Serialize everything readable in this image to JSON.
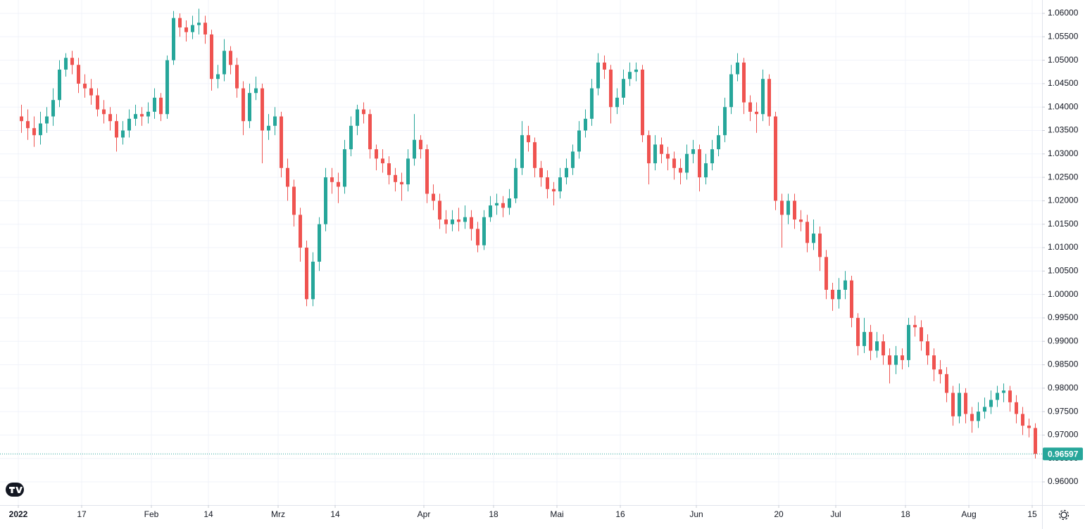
{
  "chart_data": {
    "type": "candlestick",
    "x": [
      "2022-01-03",
      "2022-01-04",
      "2022-01-05",
      "2022-01-06",
      "2022-01-07",
      "2022-01-10",
      "2022-01-11",
      "2022-01-12",
      "2022-01-13",
      "2022-01-14",
      "2022-01-17",
      "2022-01-18",
      "2022-01-19",
      "2022-01-20",
      "2022-01-21",
      "2022-01-24",
      "2022-01-25",
      "2022-01-26",
      "2022-01-27",
      "2022-01-28",
      "2022-01-31",
      "2022-02-01",
      "2022-02-02",
      "2022-02-03",
      "2022-02-04",
      "2022-02-07",
      "2022-02-08",
      "2022-02-09",
      "2022-02-10",
      "2022-02-11",
      "2022-02-14",
      "2022-02-15",
      "2022-02-16",
      "2022-02-17",
      "2022-02-18",
      "2022-02-21",
      "2022-02-22",
      "2022-02-23",
      "2022-02-24",
      "2022-02-25",
      "2022-02-28",
      "2022-03-01",
      "2022-03-02",
      "2022-03-03",
      "2022-03-04",
      "2022-03-07",
      "2022-03-08",
      "2022-03-09",
      "2022-03-10",
      "2022-03-11",
      "2022-03-14",
      "2022-03-15",
      "2022-03-16",
      "2022-03-17",
      "2022-03-18",
      "2022-03-21",
      "2022-03-22",
      "2022-03-23",
      "2022-03-24",
      "2022-03-25",
      "2022-03-28",
      "2022-03-29",
      "2022-03-30",
      "2022-03-31",
      "2022-04-01",
      "2022-04-04",
      "2022-04-05",
      "2022-04-06",
      "2022-04-07",
      "2022-04-08",
      "2022-04-11",
      "2022-04-12",
      "2022-04-13",
      "2022-04-14",
      "2022-04-15",
      "2022-04-18",
      "2022-04-19",
      "2022-04-20",
      "2022-04-21",
      "2022-04-22",
      "2022-04-25",
      "2022-04-26",
      "2022-04-27",
      "2022-04-28",
      "2022-04-29",
      "2022-05-02",
      "2022-05-03",
      "2022-05-04",
      "2022-05-05",
      "2022-05-06",
      "2022-05-09",
      "2022-05-10",
      "2022-05-11",
      "2022-05-12",
      "2022-05-13",
      "2022-05-16",
      "2022-05-17",
      "2022-05-18",
      "2022-05-19",
      "2022-05-20",
      "2022-05-23",
      "2022-05-24",
      "2022-05-25",
      "2022-05-26",
      "2022-05-27",
      "2022-05-30",
      "2022-05-31",
      "2022-06-01",
      "2022-06-02",
      "2022-06-03",
      "2022-06-06",
      "2022-06-07",
      "2022-06-08",
      "2022-06-09",
      "2022-06-10",
      "2022-06-13",
      "2022-06-14",
      "2022-06-15",
      "2022-06-16",
      "2022-06-17",
      "2022-06-20",
      "2022-06-21",
      "2022-06-22",
      "2022-06-23",
      "2022-06-24",
      "2022-06-27",
      "2022-06-28",
      "2022-06-29",
      "2022-06-30",
      "2022-07-01",
      "2022-07-04",
      "2022-07-05",
      "2022-07-06",
      "2022-07-07",
      "2022-07-08",
      "2022-07-11",
      "2022-07-12",
      "2022-07-13",
      "2022-07-14",
      "2022-07-15",
      "2022-07-18",
      "2022-07-19",
      "2022-07-20",
      "2022-07-21",
      "2022-07-22",
      "2022-07-25",
      "2022-07-26",
      "2022-07-27",
      "2022-07-28",
      "2022-07-29",
      "2022-08-01",
      "2022-08-02",
      "2022-08-03",
      "2022-08-04",
      "2022-08-05",
      "2022-08-08",
      "2022-08-09",
      "2022-08-10",
      "2022-08-11",
      "2022-08-12",
      "2022-08-15"
    ],
    "open": [
      1.038,
      1.037,
      1.0355,
      1.034,
      1.0365,
      1.038,
      1.0415,
      1.048,
      1.0505,
      1.049,
      1.045,
      1.044,
      1.0425,
      1.0395,
      1.0385,
      1.037,
      1.0335,
      1.035,
      1.0375,
      1.0385,
      1.038,
      1.039,
      1.042,
      1.0385,
      1.05,
      1.059,
      1.057,
      1.056,
      1.0575,
      1.058,
      1.0555,
      1.046,
      1.047,
      1.052,
      1.049,
      1.044,
      1.037,
      1.043,
      1.044,
      1.035,
      1.036,
      1.038,
      1.027,
      1.023,
      1.017,
      1.01,
      0.999,
      1.007,
      1.015,
      1.025,
      1.024,
      1.023,
      1.031,
      1.036,
      1.0395,
      1.0385,
      1.031,
      1.029,
      1.028,
      1.0255,
      1.024,
      1.0235,
      1.029,
      1.033,
      1.031,
      1.0215,
      1.02,
      1.016,
      1.015,
      1.016,
      1.0155,
      1.0165,
      1.014,
      1.0105,
      1.0165,
      1.019,
      1.0195,
      1.0185,
      1.0205,
      1.027,
      1.034,
      1.0325,
      1.027,
      1.025,
      1.0225,
      1.022,
      1.025,
      1.027,
      1.0305,
      1.035,
      1.0375,
      1.044,
      1.0495,
      1.048,
      1.04,
      1.042,
      1.046,
      1.0475,
      1.048,
      1.034,
      1.028,
      1.032,
      1.03,
      1.029,
      1.027,
      1.026,
      1.03,
      1.031,
      1.025,
      1.028,
      1.031,
      1.034,
      1.04,
      1.047,
      1.0495,
      1.041,
      1.039,
      1.0385,
      1.046,
      1.038,
      1.02,
      1.017,
      1.02,
      1.016,
      1.0155,
      1.011,
      1.013,
      1.008,
      1.001,
      0.999,
      1.001,
      1.003,
      0.995,
      0.989,
      0.992,
      0.988,
      0.99,
      0.987,
      0.985,
      0.987,
      0.986,
      0.9935,
      0.993,
      0.99,
      0.987,
      0.984,
      0.983,
      0.979,
      0.974,
      0.979,
      0.9745,
      0.973,
      0.975,
      0.976,
      0.9775,
      0.979,
      0.9795,
      0.977,
      0.9745,
      0.972,
      0.9715
    ],
    "high": [
      1.0405,
      1.0395,
      1.038,
      1.039,
      1.04,
      1.044,
      1.05,
      1.0515,
      1.052,
      1.0505,
      1.047,
      1.046,
      1.044,
      1.0415,
      1.04,
      1.0385,
      1.037,
      1.0395,
      1.0405,
      1.04,
      1.041,
      1.044,
      1.043,
      1.051,
      1.0605,
      1.06,
      1.0585,
      1.0595,
      1.061,
      1.0595,
      1.0565,
      1.049,
      1.0545,
      1.053,
      1.0505,
      1.0455,
      1.045,
      1.0465,
      1.045,
      1.0385,
      1.04,
      1.039,
      1.029,
      1.0245,
      1.0185,
      1.0115,
      1.009,
      1.0165,
      1.027,
      1.027,
      1.026,
      1.033,
      1.038,
      1.0405,
      1.041,
      1.0395,
      1.032,
      1.031,
      1.0295,
      1.027,
      1.026,
      1.031,
      1.0385,
      1.034,
      1.032,
      1.0235,
      1.0215,
      1.018,
      1.018,
      1.0185,
      1.019,
      1.018,
      1.0155,
      1.018,
      1.021,
      1.0215,
      1.021,
      1.0225,
      1.029,
      1.037,
      1.036,
      1.0335,
      1.0285,
      1.0265,
      1.024,
      1.027,
      1.029,
      1.032,
      1.037,
      1.0395,
      1.046,
      1.0515,
      1.051,
      1.049,
      1.044,
      1.048,
      1.0495,
      1.0495,
      1.049,
      1.035,
      1.034,
      1.0335,
      1.0315,
      1.0305,
      1.029,
      1.032,
      1.033,
      1.032,
      1.03,
      1.033,
      1.036,
      1.042,
      1.049,
      1.0515,
      1.0505,
      1.0425,
      1.041,
      1.048,
      1.047,
      1.039,
      1.0215,
      1.0215,
      1.0215,
      1.018,
      1.017,
      1.016,
      1.0145,
      1.0095,
      1.0025,
      1.0035,
      1.005,
      1.004,
      0.996,
      0.995,
      0.9935,
      0.992,
      0.9915,
      0.9885,
      0.989,
      0.9885,
      0.995,
      0.9955,
      0.9945,
      0.9915,
      0.9885,
      0.986,
      0.9845,
      0.9805,
      0.981,
      0.98,
      0.976,
      0.977,
      0.978,
      0.9795,
      0.9805,
      0.981,
      0.9805,
      0.9785,
      0.976,
      0.9735,
      0.9725
    ],
    "low": [
      1.0345,
      1.033,
      1.0315,
      1.032,
      1.0345,
      1.036,
      1.04,
      1.0465,
      1.047,
      1.043,
      1.042,
      1.0405,
      1.038,
      1.0365,
      1.035,
      1.0305,
      1.032,
      1.0335,
      1.036,
      1.036,
      1.0365,
      1.0375,
      1.037,
      1.0375,
      1.049,
      1.055,
      1.054,
      1.0545,
      1.0555,
      1.0535,
      1.0435,
      1.044,
      1.0455,
      1.047,
      1.042,
      1.034,
      1.0355,
      1.0415,
      1.028,
      1.033,
      1.034,
      1.025,
      1.02,
      1.0145,
      1.007,
      0.9975,
      0.9975,
      1.005,
      1.0135,
      1.0215,
      1.0195,
      1.0215,
      1.0295,
      1.034,
      1.0365,
      1.029,
      1.0265,
      1.026,
      1.0235,
      1.022,
      1.02,
      1.022,
      1.0275,
      1.029,
      1.0195,
      1.018,
      1.014,
      1.013,
      1.0135,
      1.0135,
      1.014,
      1.0115,
      1.009,
      1.0095,
      1.0155,
      1.017,
      1.0165,
      1.017,
      1.0195,
      1.0255,
      1.0305,
      1.025,
      1.023,
      1.0205,
      1.019,
      1.0205,
      1.0235,
      1.0255,
      1.029,
      1.0335,
      1.036,
      1.0425,
      1.046,
      1.0365,
      1.0385,
      1.0405,
      1.0445,
      1.0455,
      1.0325,
      1.0235,
      1.0265,
      1.028,
      1.0265,
      1.0245,
      1.0235,
      1.0245,
      1.028,
      1.022,
      1.0235,
      1.0265,
      1.0295,
      1.0325,
      1.0385,
      1.0455,
      1.0385,
      1.037,
      1.0345,
      1.037,
      1.036,
      1.018,
      1.01,
      1.015,
      1.014,
      1.0135,
      1.009,
      1.0095,
      1.005,
      0.999,
      0.9965,
      0.997,
      0.999,
      0.993,
      0.987,
      0.9875,
      0.986,
      0.9865,
      0.985,
      0.981,
      0.983,
      0.984,
      0.9845,
      0.991,
      0.988,
      0.985,
      0.9815,
      0.981,
      0.977,
      0.972,
      0.9725,
      0.9725,
      0.9705,
      0.9715,
      0.9735,
      0.9745,
      0.976,
      0.977,
      0.975,
      0.9725,
      0.97,
      0.9695,
      0.965
    ],
    "close": [
      1.037,
      1.0355,
      1.034,
      1.0365,
      1.038,
      1.0415,
      1.048,
      1.0505,
      1.049,
      1.045,
      1.044,
      1.0425,
      1.0395,
      1.0385,
      1.037,
      1.0335,
      1.035,
      1.0375,
      1.0385,
      1.038,
      1.039,
      1.042,
      1.0385,
      1.05,
      1.059,
      1.057,
      1.056,
      1.0575,
      1.058,
      1.0555,
      1.046,
      1.047,
      1.052,
      1.049,
      1.044,
      1.037,
      1.043,
      1.044,
      1.035,
      1.036,
      1.038,
      1.027,
      1.023,
      1.017,
      1.01,
      0.999,
      1.007,
      1.015,
      1.025,
      1.024,
      1.023,
      1.031,
      1.036,
      1.0395,
      1.0385,
      1.031,
      1.029,
      1.028,
      1.0255,
      1.024,
      1.0235,
      1.029,
      1.033,
      1.031,
      1.0215,
      1.02,
      1.016,
      1.015,
      1.016,
      1.0155,
      1.0165,
      1.014,
      1.0105,
      1.0165,
      1.019,
      1.0195,
      1.0185,
      1.0205,
      1.027,
      1.034,
      1.0325,
      1.027,
      1.025,
      1.0225,
      1.022,
      1.025,
      1.027,
      1.0305,
      1.035,
      1.0375,
      1.044,
      1.0495,
      1.048,
      1.04,
      1.042,
      1.046,
      1.0475,
      1.048,
      1.034,
      1.028,
      1.032,
      1.03,
      1.029,
      1.027,
      1.026,
      1.03,
      1.031,
      1.025,
      1.028,
      1.031,
      1.034,
      1.04,
      1.047,
      1.0495,
      1.041,
      1.039,
      1.0385,
      1.046,
      1.038,
      1.02,
      1.017,
      1.02,
      1.016,
      1.0155,
      1.011,
      1.013,
      1.008,
      1.001,
      0.999,
      1.001,
      1.003,
      0.995,
      0.989,
      0.992,
      0.988,
      0.99,
      0.987,
      0.985,
      0.987,
      0.986,
      0.9935,
      0.993,
      0.99,
      0.987,
      0.984,
      0.983,
      0.979,
      0.974,
      0.979,
      0.9745,
      0.973,
      0.975,
      0.976,
      0.9775,
      0.979,
      0.9795,
      0.977,
      0.9745,
      0.972,
      0.9715,
      0.96597
    ],
    "up_color": "#26a69a",
    "down_color": "#ef5350",
    "last_price_color": "#26a69a",
    "ylim": [
      0.95505,
      1.06285
    ],
    "yticks": [
      {
        "value": 0.96,
        "label": "0.96000"
      },
      {
        "value": 0.965,
        "label": "0.96500"
      },
      {
        "value": 0.97,
        "label": "0.97000"
      },
      {
        "value": 0.975,
        "label": "0.97500"
      },
      {
        "value": 0.98,
        "label": "0.98000"
      },
      {
        "value": 0.985,
        "label": "0.98500"
      },
      {
        "value": 0.99,
        "label": "0.99000"
      },
      {
        "value": 0.995,
        "label": "0.99500"
      },
      {
        "value": 1.0,
        "label": "1.00000"
      },
      {
        "value": 1.005,
        "label": "1.00500"
      },
      {
        "value": 1.01,
        "label": "1.01000"
      },
      {
        "value": 1.015,
        "label": "1.01500"
      },
      {
        "value": 1.02,
        "label": "1.02000"
      },
      {
        "value": 1.025,
        "label": "1.02500"
      },
      {
        "value": 1.03,
        "label": "1.03000"
      },
      {
        "value": 1.035,
        "label": "1.03500"
      },
      {
        "value": 1.04,
        "label": "1.04000"
      },
      {
        "value": 1.045,
        "label": "1.04500"
      },
      {
        "value": 1.05,
        "label": "1.05000"
      },
      {
        "value": 1.055,
        "label": "1.05500"
      },
      {
        "value": 1.06,
        "label": "1.06000"
      }
    ],
    "xticks": [
      {
        "value": "2022-01-03",
        "label": "2022"
      },
      {
        "value": "2022-01-17",
        "label": "17"
      },
      {
        "value": "2022-02-01",
        "label": "Feb"
      },
      {
        "value": "2022-02-14",
        "label": "14"
      },
      {
        "value": "2022-03-01",
        "label": "Mrz"
      },
      {
        "value": "2022-03-14",
        "label": "14"
      },
      {
        "value": "2022-04-01",
        "label": "Apr"
      },
      {
        "value": "2022-04-18",
        "label": "18"
      },
      {
        "value": "2022-05-02",
        "label": "Mai"
      },
      {
        "value": "2022-05-16",
        "label": "16"
      },
      {
        "value": "2022-06-01",
        "label": "Jun"
      },
      {
        "value": "2022-06-20",
        "label": "20"
      },
      {
        "value": "2022-07-01",
        "label": "Jul"
      },
      {
        "value": "2022-07-18",
        "label": "18"
      },
      {
        "value": "2022-08-01",
        "label": "Aug"
      },
      {
        "value": "2022-08-15",
        "label": "15"
      }
    ],
    "grid": true
  }
}
